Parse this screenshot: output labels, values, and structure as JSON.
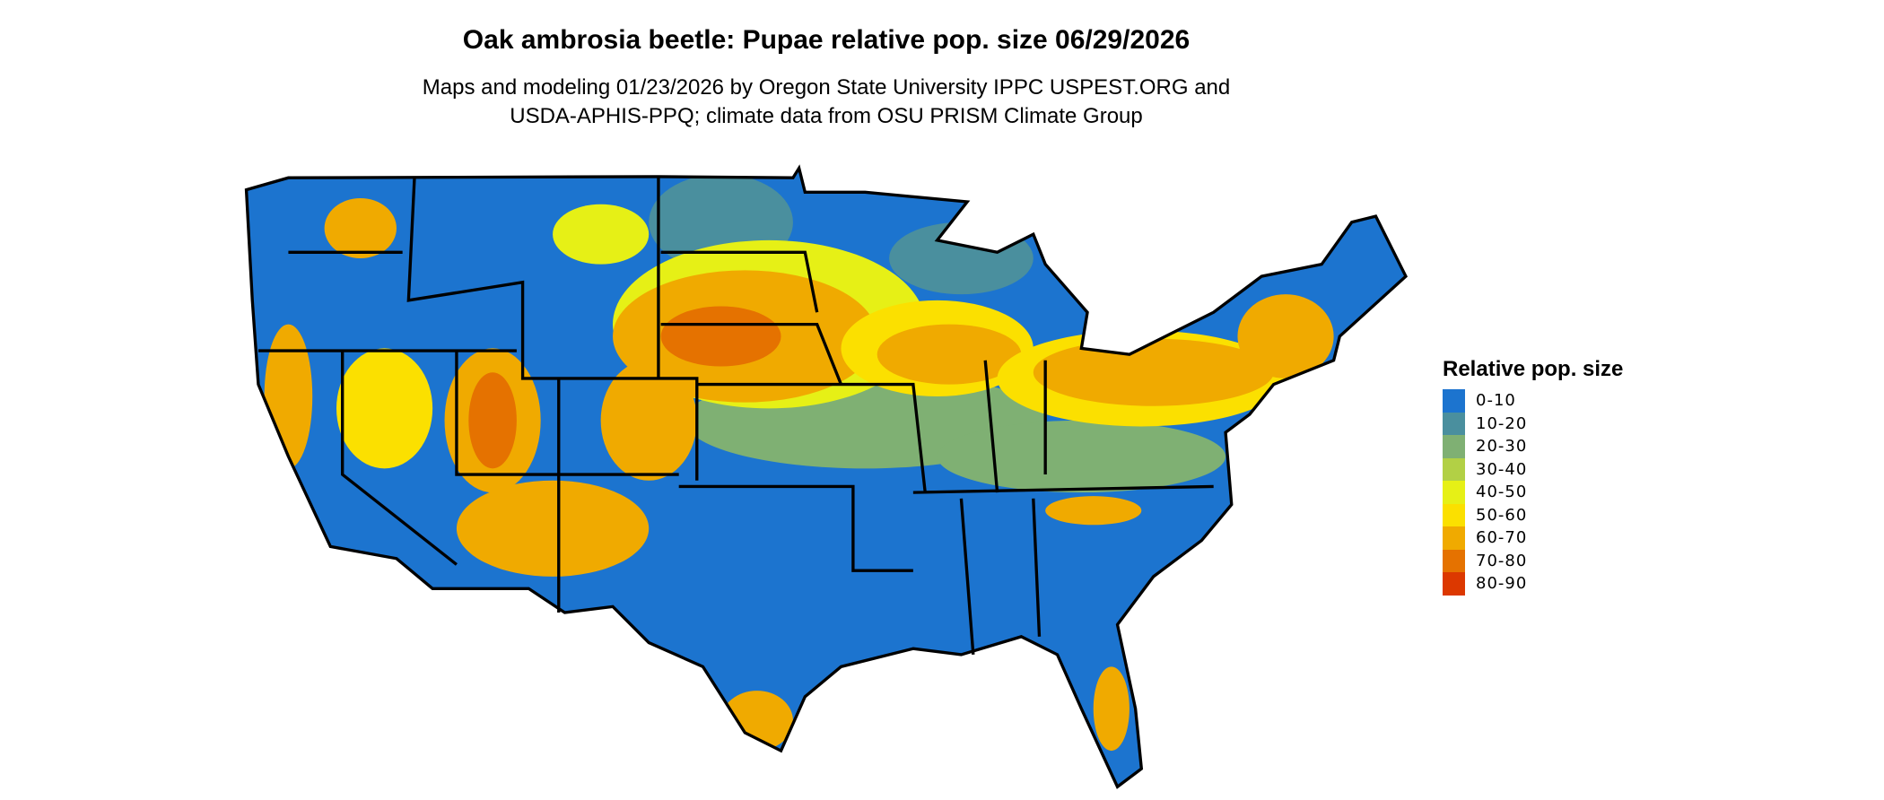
{
  "title": "Oak ambrosia beetle: Pupae relative pop. size 06/29/2026",
  "subtitle_line1": "Maps and modeling 01/23/2026 by Oregon State University IPPC USPEST.ORG and",
  "subtitle_line2": "USDA-APHIS-PPQ; climate data from OSU PRISM Climate Group",
  "legend": {
    "title": "Relative pop. size",
    "items": [
      {
        "label": "0-10",
        "color": "#1c74cf"
      },
      {
        "label": "10-20",
        "color": "#4a8f9e"
      },
      {
        "label": "20-30",
        "color": "#7fb073"
      },
      {
        "label": "30-40",
        "color": "#b2d045"
      },
      {
        "label": "40-50",
        "color": "#e6f016"
      },
      {
        "label": "50-60",
        "color": "#fbe000"
      },
      {
        "label": "60-70",
        "color": "#f0aa00"
      },
      {
        "label": "70-80",
        "color": "#e57200"
      },
      {
        "label": "80-90",
        "color": "#dc3800"
      }
    ]
  }
}
